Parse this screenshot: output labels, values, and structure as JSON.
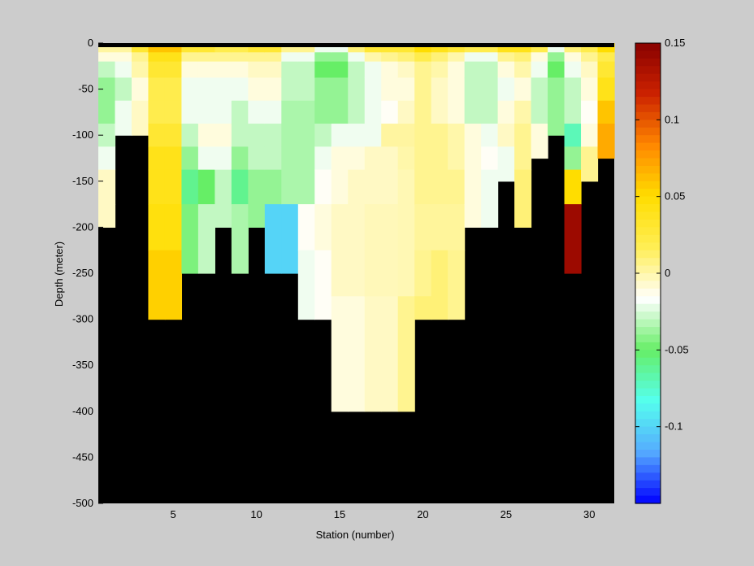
{
  "chart_data": {
    "type": "heatmap",
    "title": "",
    "xlabel": "Station (number)",
    "ylabel": "Depth (meter)",
    "xlim": [
      1,
      31
    ],
    "ylim": [
      -500,
      0
    ],
    "x_ticks": [
      5,
      10,
      15,
      20,
      25,
      30
    ],
    "y_ticks": [
      0,
      -50,
      -100,
      -150,
      -200,
      -250,
      -300,
      -350,
      -400,
      -450,
      -500
    ],
    "stations": [
      1,
      2,
      3,
      4,
      5,
      6,
      7,
      8,
      9,
      10,
      11,
      12,
      13,
      14,
      15,
      16,
      17,
      18,
      19,
      20,
      21,
      22,
      23,
      24,
      25,
      26,
      27,
      28,
      29,
      30,
      31
    ],
    "depth_levels": [
      -5,
      -15,
      -25,
      -50,
      -75,
      -100,
      -125,
      -150,
      -200,
      -250,
      -300,
      -400
    ],
    "station_bottom_depth": [
      -200,
      -100,
      -100,
      -300,
      -300,
      -250,
      -250,
      -200,
      -250,
      -200,
      -250,
      -250,
      -300,
      -300,
      -400,
      -400,
      -400,
      -400,
      -400,
      -300,
      -300,
      -300,
      -200,
      -200,
      -150,
      -200,
      -125,
      -100,
      -250,
      -150,
      -125
    ],
    "values": [
      [
        0.002,
        -0.01,
        -0.03,
        -0.04,
        -0.04,
        -0.03,
        -0.02,
        -0.005,
        -0.005,
        null,
        null,
        null
      ],
      [
        0.002,
        -0.01,
        -0.02,
        -0.03,
        -0.02,
        null,
        null,
        null,
        null,
        null,
        null,
        null
      ],
      [
        0.03,
        0.005,
        0.0,
        -0.01,
        -0.005,
        null,
        null,
        null,
        null,
        null,
        null,
        null
      ],
      [
        0.06,
        0.04,
        0.03,
        0.02,
        0.02,
        0.03,
        0.04,
        0.04,
        0.045,
        0.055,
        null,
        null
      ],
      [
        0.06,
        0.04,
        0.03,
        0.02,
        0.02,
        0.03,
        0.04,
        0.04,
        0.045,
        0.055,
        null,
        null
      ],
      [
        0.03,
        0.005,
        -0.01,
        -0.02,
        -0.02,
        -0.03,
        -0.04,
        -0.06,
        -0.045,
        null,
        null,
        null
      ],
      [
        0.03,
        0.005,
        -0.01,
        -0.02,
        -0.02,
        -0.01,
        -0.02,
        -0.05,
        -0.03,
        null,
        null,
        null
      ],
      [
        0.02,
        0.005,
        -0.01,
        -0.02,
        -0.02,
        -0.01,
        -0.02,
        -0.03,
        null,
        null,
        null,
        null
      ],
      [
        0.02,
        0.005,
        -0.01,
        -0.02,
        -0.03,
        -0.03,
        -0.04,
        -0.06,
        -0.035,
        null,
        null,
        null
      ],
      [
        0.03,
        0.005,
        -0.005,
        -0.01,
        -0.02,
        -0.03,
        -0.03,
        -0.04,
        null,
        null,
        null,
        null
      ],
      [
        0.03,
        0.005,
        -0.005,
        -0.01,
        -0.02,
        -0.03,
        -0.03,
        -0.04,
        -0.1,
        null,
        null,
        null
      ],
      [
        0.005,
        -0.02,
        -0.03,
        -0.03,
        -0.035,
        -0.035,
        -0.035,
        -0.035,
        -0.1,
        null,
        null,
        null
      ],
      [
        0.005,
        -0.02,
        -0.03,
        -0.03,
        -0.035,
        -0.035,
        -0.035,
        -0.035,
        -0.015,
        -0.02,
        null,
        null
      ],
      [
        -0.02,
        -0.04,
        -0.05,
        -0.04,
        -0.04,
        -0.03,
        -0.02,
        -0.015,
        -0.01,
        -0.015,
        null,
        null
      ],
      [
        -0.02,
        -0.04,
        -0.05,
        -0.04,
        -0.04,
        -0.02,
        -0.01,
        -0.01,
        -0.005,
        -0.005,
        -0.01,
        null
      ],
      [
        0.01,
        -0.02,
        -0.03,
        -0.03,
        -0.03,
        -0.02,
        -0.01,
        -0.005,
        -0.005,
        -0.005,
        -0.01,
        null
      ],
      [
        0.03,
        0.0,
        -0.02,
        -0.02,
        -0.02,
        -0.02,
        -0.005,
        -0.005,
        -0.003,
        -0.003,
        -0.005,
        null
      ],
      [
        0.03,
        0.005,
        -0.01,
        -0.01,
        -0.015,
        0.002,
        -0.005,
        -0.005,
        -0.003,
        -0.003,
        -0.005,
        null
      ],
      [
        0.03,
        0.01,
        -0.005,
        -0.01,
        -0.005,
        0.002,
        0.0,
        -0.002,
        -0.002,
        -0.002,
        0.005,
        null
      ],
      [
        0.05,
        0.02,
        0.005,
        0.005,
        0.005,
        0.005,
        0.005,
        0.005,
        0.003,
        0.005,
        0.01,
        null
      ],
      [
        0.04,
        0.01,
        0.0,
        -0.005,
        -0.005,
        0.005,
        0.005,
        0.005,
        0.003,
        0.01,
        null,
        null
      ],
      [
        0.03,
        0.0,
        -0.01,
        -0.01,
        -0.01,
        0.0,
        0.0,
        0.005,
        0.003,
        0.005,
        null,
        null
      ],
      [
        0.02,
        -0.02,
        -0.03,
        -0.03,
        -0.03,
        -0.01,
        -0.01,
        -0.01,
        -0.01,
        -0.03,
        null,
        null
      ],
      [
        0.02,
        -0.02,
        -0.03,
        -0.03,
        -0.03,
        -0.02,
        -0.015,
        -0.02,
        null,
        null,
        null,
        null
      ],
      [
        0.04,
        0.005,
        -0.01,
        -0.02,
        -0.01,
        -0.005,
        -0.02,
        null,
        null,
        null,
        null,
        null
      ],
      [
        0.04,
        0.01,
        0.0,
        -0.01,
        0.0,
        0.005,
        0.005,
        0.01,
        null,
        null,
        null,
        null
      ],
      [
        0.02,
        -0.01,
        -0.02,
        -0.03,
        -0.03,
        -0.01,
        null,
        null,
        null,
        null,
        null,
        null
      ],
      [
        -0.02,
        -0.04,
        -0.05,
        -0.04,
        -0.04,
        null,
        null,
        null,
        null,
        null,
        null,
        null
      ],
      [
        0.01,
        -0.01,
        -0.02,
        -0.03,
        -0.03,
        -0.07,
        -0.04,
        0.05,
        0.14,
        null,
        null,
        null
      ],
      [
        0.02,
        0.005,
        -0.005,
        -0.01,
        -0.015,
        -0.01,
        0.005,
        null,
        null,
        null,
        null,
        null
      ],
      [
        0.05,
        0.02,
        0.03,
        0.04,
        0.06,
        0.07,
        null,
        null,
        null,
        null,
        null,
        null
      ]
    ],
    "colorbar": {
      "clim": [
        -0.15,
        0.15
      ],
      "ticks": [
        0.15,
        0.1,
        0.05,
        0,
        -0.05,
        -0.1
      ],
      "tick_labels": [
        "0.15",
        "0.1",
        "0.05",
        "0",
        "-0.05",
        "-0.1"
      ],
      "colors": [
        "#0000ff",
        "#55aaff",
        "#55ffee",
        "#66ee66",
        "#ffffff",
        "#ffee55",
        "#ffdd00",
        "#ff8800",
        "#cc2200",
        "#880000"
      ]
    },
    "grid": false,
    "land_color": "#000000",
    "background_color": "#cccccc"
  }
}
